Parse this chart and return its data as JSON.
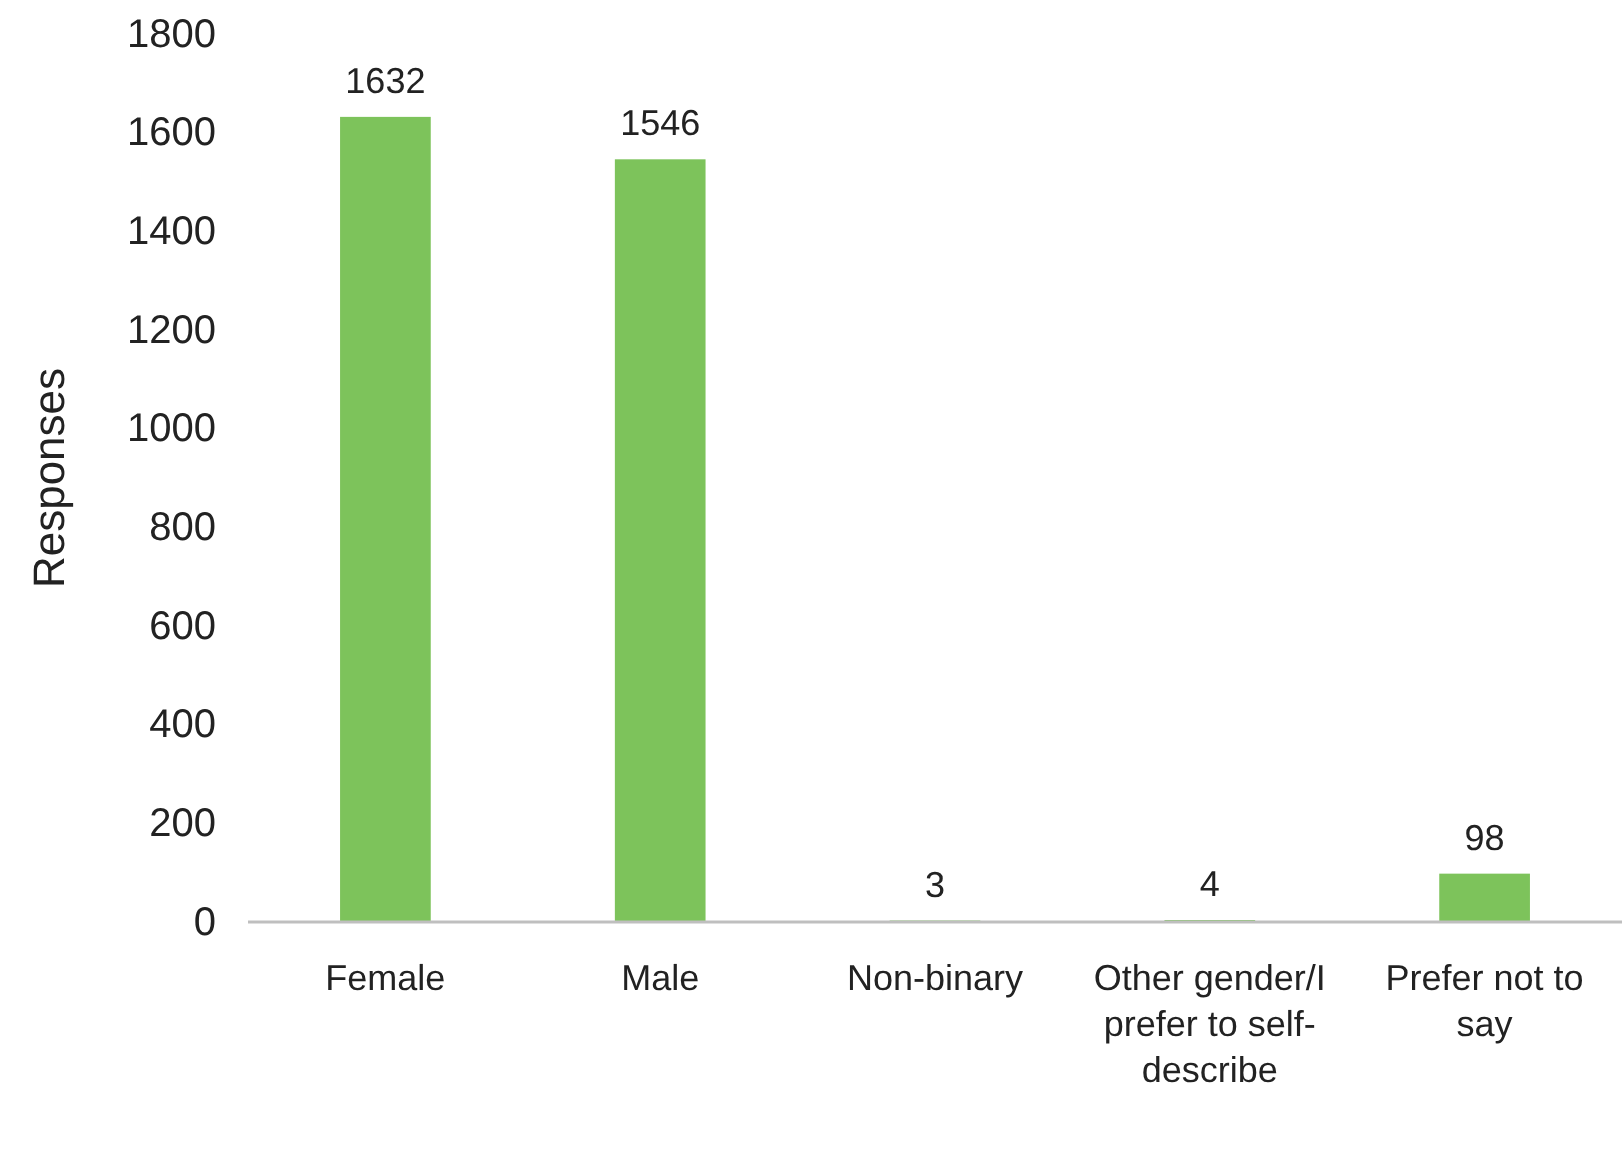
{
  "chart_data": {
    "type": "bar",
    "ylabel": "Responses",
    "categories": [
      "Female",
      "Male",
      "Non-binary",
      "Other gender/I prefer to self-describe",
      "Prefer not to say"
    ],
    "values": [
      1632,
      1546,
      3,
      4,
      98
    ],
    "color": "#7dc35b",
    "ylim": [
      0,
      1800
    ],
    "yticks": [
      0,
      200,
      400,
      600,
      800,
      1000,
      1200,
      1400,
      1600,
      1800
    ],
    "grid": false,
    "data_labels": true
  }
}
